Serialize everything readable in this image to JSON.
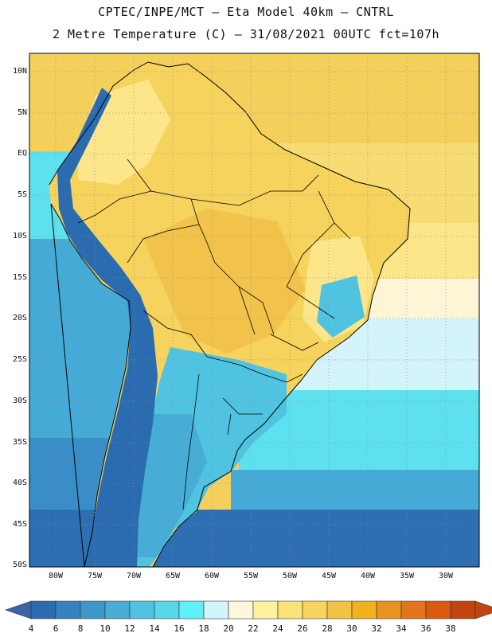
{
  "header": {
    "title_line1": "CPTEC/INPE/MCT  –  Eta Model 40km  –  CNTRL",
    "title_line2": "2 Metre Temperature (C) – 31/08/2021 00UTC fct=107h"
  },
  "axes": {
    "lat_labels": [
      "10N",
      "5N",
      "EQ",
      "5S",
      "10S",
      "15S",
      "20S",
      "25S",
      "30S",
      "35S",
      "40S",
      "45S",
      "50S"
    ],
    "lon_labels": [
      "80W",
      "75W",
      "70W",
      "65W",
      "60W",
      "55W",
      "50W",
      "45W",
      "40W",
      "35W",
      "30W"
    ]
  },
  "colorbar": {
    "labels": [
      "4",
      "6",
      "8",
      "10",
      "12",
      "14",
      "16",
      "18",
      "20",
      "22",
      "24",
      "26",
      "28",
      "30",
      "32",
      "34",
      "36",
      "38"
    ],
    "colors": [
      "#2b6cb0",
      "#3582c0",
      "#3e97c9",
      "#47acd6",
      "#50c3e0",
      "#56d6e8",
      "#5ff1f7",
      "#d1f5fb",
      "#fdf8dc",
      "#fdf39e",
      "#f9e378",
      "#f6d45e",
      "#f2c244",
      "#f0b21e",
      "#e8931d",
      "#e4741c",
      "#dc5a10",
      "#c24410"
    ],
    "low_cap_color": "#3a64a8",
    "high_cap_color": "#c24410"
  },
  "map": {
    "ocean_colors": {
      "tropical_north": "#f3cf5c",
      "equatorial": "#f7dc73",
      "tropical_south": "#fde68a",
      "subtropical": "#fef5d6",
      "cool": "#d4f4fb",
      "mid": "#5ee1ef",
      "cold": "#45aad6",
      "colder": "#3a8ec8",
      "coldest": "#2d6fb2"
    },
    "land_colors": {
      "interior_hot": "#f1c34a",
      "interior_warm": "#f6d35c",
      "coast_mild": "#fde68a",
      "highland_cool": "#50c3e0",
      "andes_cold": "#2b6cb0",
      "south_cool": "#47acd6",
      "south_mid": "#50c3e0"
    }
  }
}
